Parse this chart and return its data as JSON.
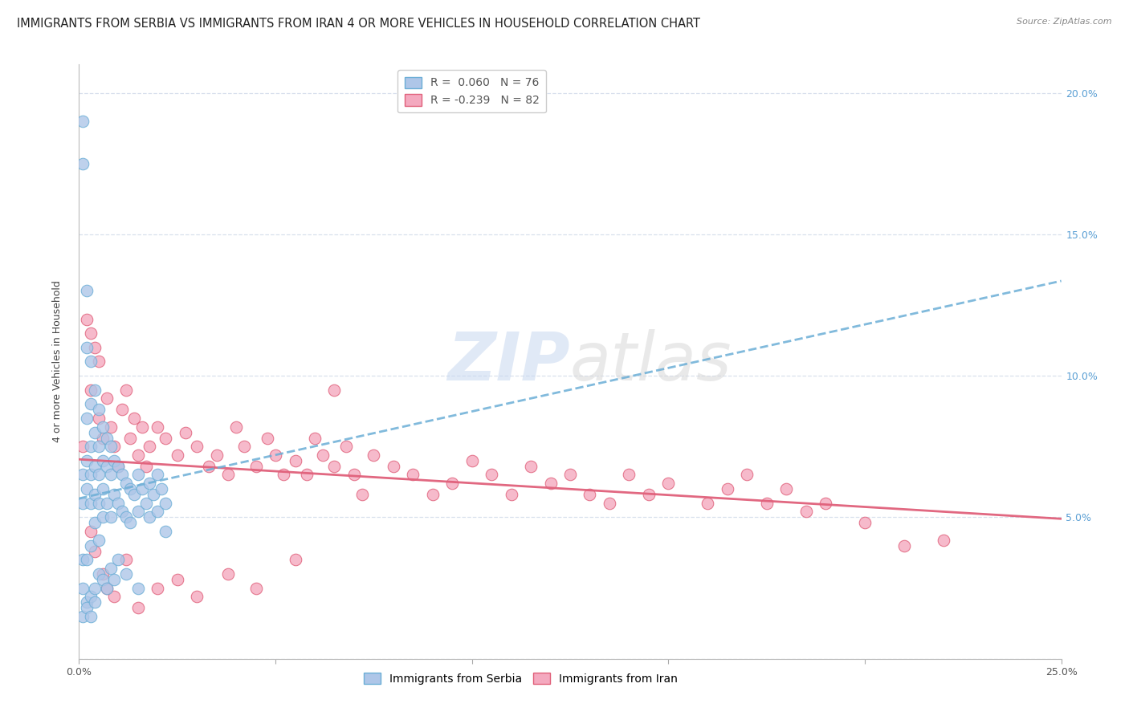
{
  "title": "IMMIGRANTS FROM SERBIA VS IMMIGRANTS FROM IRAN 4 OR MORE VEHICLES IN HOUSEHOLD CORRELATION CHART",
  "source": "Source: ZipAtlas.com",
  "ylabel": "4 or more Vehicles in Household",
  "xmin": 0.0,
  "xmax": 0.25,
  "ymin": 0.0,
  "ymax": 0.21,
  "serbia_color": "#aec6e8",
  "serbia_edge_color": "#6baed6",
  "iran_color": "#f4a9bf",
  "iran_edge_color": "#e0607a",
  "serbia_line_color": "#6baed6",
  "iran_line_color": "#e0607a",
  "serbia_R": 0.06,
  "serbia_N": 76,
  "iran_R": -0.239,
  "iran_N": 82,
  "serbia_scatter_x": [
    0.001,
    0.001,
    0.001,
    0.001,
    0.001,
    0.002,
    0.002,
    0.002,
    0.002,
    0.002,
    0.002,
    0.003,
    0.003,
    0.003,
    0.003,
    0.003,
    0.003,
    0.004,
    0.004,
    0.004,
    0.004,
    0.004,
    0.005,
    0.005,
    0.005,
    0.005,
    0.005,
    0.006,
    0.006,
    0.006,
    0.006,
    0.007,
    0.007,
    0.007,
    0.008,
    0.008,
    0.008,
    0.009,
    0.009,
    0.01,
    0.01,
    0.011,
    0.011,
    0.012,
    0.012,
    0.013,
    0.013,
    0.014,
    0.015,
    0.015,
    0.016,
    0.017,
    0.018,
    0.018,
    0.019,
    0.02,
    0.02,
    0.021,
    0.022,
    0.022,
    0.001,
    0.001,
    0.002,
    0.002,
    0.003,
    0.003,
    0.004,
    0.004,
    0.005,
    0.006,
    0.007,
    0.008,
    0.009,
    0.01,
    0.012,
    0.015
  ],
  "serbia_scatter_y": [
    0.19,
    0.175,
    0.065,
    0.055,
    0.035,
    0.13,
    0.11,
    0.085,
    0.07,
    0.06,
    0.035,
    0.105,
    0.09,
    0.075,
    0.065,
    0.055,
    0.04,
    0.095,
    0.08,
    0.068,
    0.058,
    0.048,
    0.088,
    0.075,
    0.065,
    0.055,
    0.042,
    0.082,
    0.07,
    0.06,
    0.05,
    0.078,
    0.068,
    0.055,
    0.075,
    0.065,
    0.05,
    0.07,
    0.058,
    0.068,
    0.055,
    0.065,
    0.052,
    0.062,
    0.05,
    0.06,
    0.048,
    0.058,
    0.065,
    0.052,
    0.06,
    0.055,
    0.062,
    0.05,
    0.058,
    0.065,
    0.052,
    0.06,
    0.055,
    0.045,
    0.025,
    0.015,
    0.02,
    0.018,
    0.022,
    0.015,
    0.025,
    0.02,
    0.03,
    0.028,
    0.025,
    0.032,
    0.028,
    0.035,
    0.03,
    0.025
  ],
  "iran_scatter_x": [
    0.001,
    0.002,
    0.003,
    0.003,
    0.004,
    0.005,
    0.005,
    0.006,
    0.007,
    0.008,
    0.009,
    0.01,
    0.011,
    0.012,
    0.013,
    0.014,
    0.015,
    0.016,
    0.017,
    0.018,
    0.02,
    0.022,
    0.025,
    0.027,
    0.03,
    0.033,
    0.035,
    0.038,
    0.04,
    0.042,
    0.045,
    0.048,
    0.05,
    0.052,
    0.055,
    0.058,
    0.06,
    0.062,
    0.065,
    0.068,
    0.07,
    0.072,
    0.075,
    0.08,
    0.085,
    0.09,
    0.095,
    0.1,
    0.105,
    0.11,
    0.115,
    0.12,
    0.125,
    0.13,
    0.135,
    0.14,
    0.145,
    0.15,
    0.16,
    0.165,
    0.17,
    0.175,
    0.18,
    0.185,
    0.19,
    0.2,
    0.21,
    0.22,
    0.003,
    0.004,
    0.006,
    0.007,
    0.009,
    0.012,
    0.015,
    0.02,
    0.025,
    0.03,
    0.038,
    0.045,
    0.055,
    0.065
  ],
  "iran_scatter_y": [
    0.075,
    0.12,
    0.115,
    0.095,
    0.11,
    0.085,
    0.105,
    0.078,
    0.092,
    0.082,
    0.075,
    0.068,
    0.088,
    0.095,
    0.078,
    0.085,
    0.072,
    0.082,
    0.068,
    0.075,
    0.082,
    0.078,
    0.072,
    0.08,
    0.075,
    0.068,
    0.072,
    0.065,
    0.082,
    0.075,
    0.068,
    0.078,
    0.072,
    0.065,
    0.07,
    0.065,
    0.078,
    0.072,
    0.068,
    0.075,
    0.065,
    0.058,
    0.072,
    0.068,
    0.065,
    0.058,
    0.062,
    0.07,
    0.065,
    0.058,
    0.068,
    0.062,
    0.065,
    0.058,
    0.055,
    0.065,
    0.058,
    0.062,
    0.055,
    0.06,
    0.065,
    0.055,
    0.06,
    0.052,
    0.055,
    0.048,
    0.04,
    0.042,
    0.045,
    0.038,
    0.03,
    0.025,
    0.022,
    0.035,
    0.018,
    0.025,
    0.028,
    0.022,
    0.03,
    0.025,
    0.035,
    0.095
  ],
  "watermark_zip": "ZIP",
  "watermark_atlas": "atlas",
  "background_color": "#ffffff",
  "grid_color": "#d8e0ed",
  "title_fontsize": 10.5,
  "axis_label_fontsize": 9,
  "tick_fontsize": 9,
  "legend_fontsize": 10
}
